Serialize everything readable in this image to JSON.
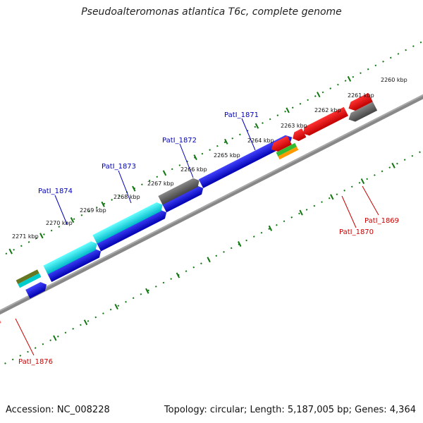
{
  "title": "Pseudoalteromonas atlantica T6c, complete genome",
  "footer": {
    "accession": "Accession: NC_008228",
    "summary": "Topology: circular; Length: 5,187,005 bp; Genes: 4,364"
  },
  "scale_labels": [
    "2260 kbp",
    "2261 kbp",
    "2262 kbp",
    "2263 kbp",
    "2264 kbp",
    "2265 kbp",
    "2266 kbp",
    "2267 kbp",
    "2268 kbp",
    "2269 kbp",
    "2270 kbp",
    "2271 kbp"
  ],
  "gene_labels": {
    "patl_1871": "PatI_1871",
    "patl_1872": "PatI_1872",
    "patl_1873": "PatI_1873",
    "patl_1874": "PatI_1874",
    "patl_1869": "PatI_1869",
    "patl_1870": "PatI_1870",
    "patl_1876": "PatI_1876"
  },
  "colors": {
    "forward_cds": "#0000dd",
    "reverse_cds": "#ee0000",
    "cyan_cds": "#00dddd",
    "gray_cds": "#666666",
    "green_cds": "#33bb33",
    "orange_cds": "#ff9900",
    "olive_cds": "#667722",
    "pink_cds": "#ee6666",
    "scale_ticks": "#117711",
    "forward_label": "#0000bb",
    "reverse_label": "#cc0000"
  }
}
